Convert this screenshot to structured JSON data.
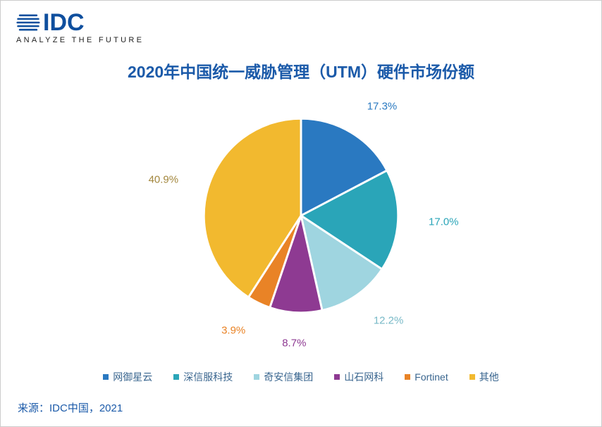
{
  "logo": {
    "brand_text": "IDC",
    "brand_color": "#0f4f9e",
    "tagline": "ANALYZE THE FUTURE"
  },
  "chart": {
    "type": "pie",
    "title": "2020年中国统一威胁管理（UTM）硬件市场份额",
    "title_color": "#1b5aa9",
    "title_fontsize": 23,
    "slices": [
      {
        "name": "网御星云",
        "value": 17.3,
        "label": "17.3%",
        "color": "#2a79c1"
      },
      {
        "name": "深信服科技",
        "value": 17.0,
        "label": "17.0%",
        "color": "#2aa5b8"
      },
      {
        "name": "奇安信集团",
        "value": 12.2,
        "label": "12.2%",
        "color": "#9fd5e0"
      },
      {
        "name": "山石网科",
        "value": 8.7,
        "label": "8.7%",
        "color": "#8e3a92"
      },
      {
        "name": "Fortinet",
        "value": 3.9,
        "label": "3.9%",
        "color": "#e98326"
      },
      {
        "name": "其他",
        "value": 40.9,
        "label": "40.9%",
        "color": "#f2b92f"
      }
    ],
    "label_fontsize": 15,
    "label_colors": [
      "#2a79c1",
      "#2aa5b8",
      "#78b9c7",
      "#8e3a92",
      "#e98326",
      "#a3873e"
    ],
    "slice_border_color": "#ffffff",
    "slice_border_width": 2
  },
  "legend": {
    "items": [
      {
        "label": "网御星云",
        "color": "#2a79c1"
      },
      {
        "label": "深信服科技",
        "color": "#2aa5b8"
      },
      {
        "label": "奇安信集团",
        "color": "#9fd5e0"
      },
      {
        "label": "山石网科",
        "color": "#8e3a92"
      },
      {
        "label": "Fortinet",
        "color": "#e98326"
      },
      {
        "label": "其他",
        "color": "#f2b92f"
      }
    ],
    "fontsize": 14,
    "text_color": "#3a668f"
  },
  "source": {
    "text": "来源：IDC中国，2021",
    "color": "#1b5aa9"
  }
}
